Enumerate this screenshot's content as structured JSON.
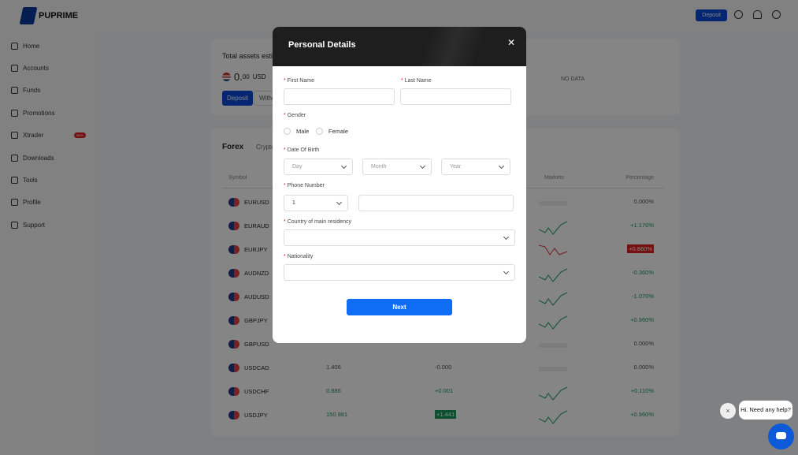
{
  "brand": "PUPRIME",
  "sidebar": {
    "items": [
      {
        "label": "Home",
        "icon": "home-icon"
      },
      {
        "label": "Accounts",
        "icon": "accounts-icon"
      },
      {
        "label": "Funds",
        "icon": "wallet-icon"
      },
      {
        "label": "Promotions",
        "icon": "gift-icon"
      },
      {
        "label": "Xtrader",
        "icon": "xtrader-icon",
        "badge": "NEW"
      },
      {
        "label": "Downloads",
        "icon": "download-icon"
      },
      {
        "label": "Tools",
        "icon": "tools-icon"
      },
      {
        "label": "Profile",
        "icon": "profile-icon"
      },
      {
        "label": "Support",
        "icon": "support-icon"
      }
    ]
  },
  "topbar": {
    "deposit": "Deposit"
  },
  "assets": {
    "title": "Total assets esti",
    "amount": "0.",
    "decimals": "00",
    "currency": "USD",
    "deposit": "Deposit",
    "withdraw": "Withdr",
    "no_data": "NO DATA"
  },
  "market": {
    "tab_active": "Forex",
    "tab2": "Crypto",
    "headers": {
      "symbol": "Symbol",
      "markets": "Markets",
      "percentage": "Percentage"
    },
    "rows": [
      {
        "symbol": "EURUSD",
        "bid": "",
        "change": "",
        "pct": "0.000%",
        "trend": "flat"
      },
      {
        "symbol": "EURAUD",
        "bid": "",
        "change": "",
        "pct": "+1.170%",
        "trend": "up"
      },
      {
        "symbol": "EURJPY",
        "bid": "",
        "change": "",
        "pct": "+0.860%",
        "trend": "down"
      },
      {
        "symbol": "AUDNZD",
        "bid": "",
        "change": "",
        "pct": "-0.360%",
        "trend": "up"
      },
      {
        "symbol": "AUDUSD",
        "bid": "",
        "change": "",
        "pct": "-1.070%",
        "trend": "up"
      },
      {
        "symbol": "GBPJPY",
        "bid": "",
        "change": "",
        "pct": "+0.960%",
        "trend": "up"
      },
      {
        "symbol": "GBPUSD",
        "bid": "",
        "change": "",
        "pct": "0.000%",
        "trend": "flat"
      },
      {
        "symbol": "USDCAD",
        "bid": "1.406",
        "change": "-0.000",
        "pct": "0.000%",
        "trend": "flat"
      },
      {
        "symbol": "USDCHF",
        "bid": "0.886",
        "change": "+0.001",
        "pct": "+0.110%",
        "trend": "up"
      },
      {
        "symbol": "USDJPY",
        "bid": "150.981",
        "change": "+1.441",
        "pct": "+0.960%",
        "trend": "up"
      }
    ]
  },
  "modal": {
    "title": "Personal Details",
    "first_name": "First Name",
    "last_name": "Last Name",
    "gender": "Gender",
    "male": "Male",
    "female": "Female",
    "dob": "Date Of Birth",
    "day": "Day",
    "month": "Month",
    "year": "Year",
    "phone": "Phone Number",
    "phone_code": "1",
    "country": "Country of main residency",
    "nationality": "Nationality",
    "next": "Next",
    "required_mark": "*"
  },
  "chat": {
    "bubble": "Hi. Need any help?",
    "close": "×"
  },
  "colors": {
    "primary": "#0c4ad8",
    "next": "#0e6cf5",
    "up": "#1a9a5a",
    "down": "#e02020"
  }
}
